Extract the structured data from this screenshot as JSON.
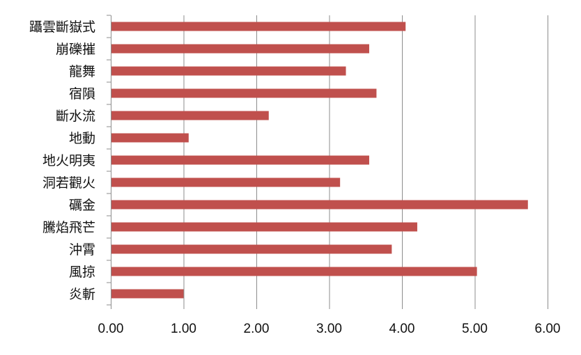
{
  "chart_data": {
    "type": "bar",
    "orientation": "horizontal",
    "categories": [
      "躡雲斷嶽式",
      "崩礫摧",
      "龍舞",
      "宿隕",
      "斷水流",
      "地動",
      "地火明夷",
      "洞若觀火",
      "礪金",
      "騰焰飛芒",
      "沖霄",
      "風掠",
      "炎斬"
    ],
    "values": [
      4.05,
      3.55,
      3.23,
      3.65,
      2.17,
      1.07,
      3.55,
      3.15,
      5.73,
      4.21,
      3.86,
      5.03,
      1.0
    ],
    "tick_labels": [
      "0.00",
      "1.00",
      "2.00",
      "3.00",
      "4.00",
      "5.00",
      "6.00"
    ],
    "xlim": [
      0,
      6
    ],
    "grid": true,
    "bar_color": "#c0504d",
    "title": "",
    "xlabel": "",
    "ylabel": ""
  }
}
